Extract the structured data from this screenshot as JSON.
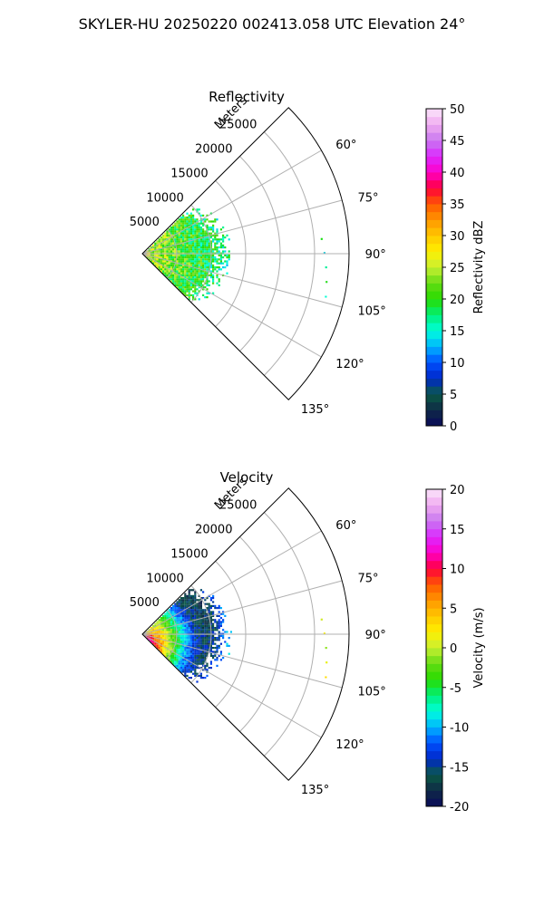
{
  "figure": {
    "title": "SKYLER-HU  20250220  002413.058 UTC Elevation 24°"
  },
  "chart_data": [
    {
      "type": "heatmap",
      "title": "Reflectivity",
      "range_label": "Meters",
      "range_ticks": [
        5000,
        10000,
        15000,
        20000,
        25000
      ],
      "range_max": 30000,
      "azimuth_ticks": [
        "60°",
        "75°",
        "90°",
        "105°",
        "120°",
        "135°"
      ],
      "azimuth_tick_values": [
        60,
        75,
        90,
        105,
        120,
        135
      ],
      "azimuth_range": [
        45,
        135
      ],
      "grid": true,
      "colorbar": {
        "label": "Reflectivity dBZ",
        "range": [
          0,
          50
        ],
        "ticks": [
          0,
          5,
          10,
          15,
          20,
          25,
          30,
          35,
          40,
          45,
          50
        ]
      },
      "echo_extent_m": 12000,
      "dominant_values_dbz": [
        18,
        25
      ]
    },
    {
      "type": "heatmap",
      "title": "Velocity",
      "range_label": "Meters",
      "range_ticks": [
        5000,
        10000,
        15000,
        20000,
        25000
      ],
      "range_max": 30000,
      "azimuth_ticks": [
        "60°",
        "75°",
        "90°",
        "105°",
        "120°",
        "135°"
      ],
      "azimuth_tick_values": [
        60,
        75,
        90,
        105,
        120,
        135
      ],
      "azimuth_range": [
        45,
        135
      ],
      "grid": true,
      "colorbar": {
        "label": "Velocity (m/s)",
        "range": [
          -20,
          20
        ],
        "ticks": [
          -20,
          -15,
          -10,
          -5,
          0,
          5,
          10,
          15,
          20
        ]
      },
      "echo_extent_m": 12000,
      "dominant_values_ms": [
        -10,
        10
      ]
    }
  ]
}
